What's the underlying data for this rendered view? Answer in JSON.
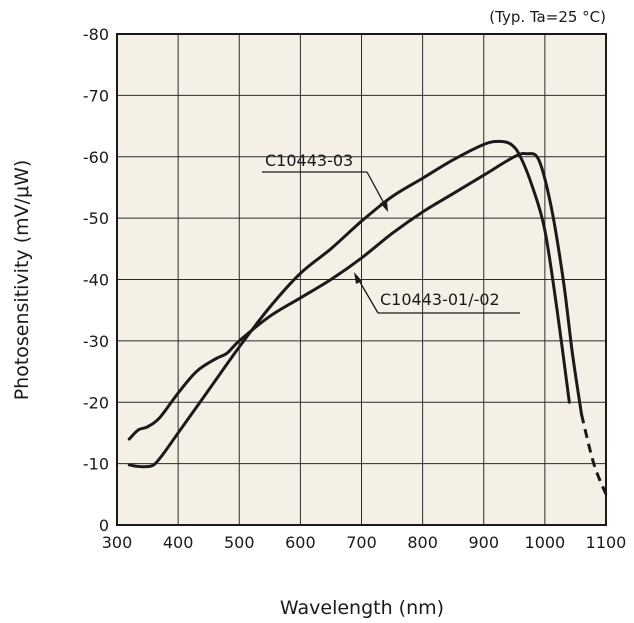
{
  "chart_data": {
    "type": "line",
    "condition_note": "(Typ. Ta=25 °C)",
    "xlabel": "Wavelength (nm)",
    "ylabel": "Photosensitivity (mV/μW)",
    "xlim": [
      300,
      1100
    ],
    "ylim": [
      0,
      -80
    ],
    "y_axis_inverted": true,
    "x_ticks": [
      "300",
      "400",
      "500",
      "600",
      "700",
      "800",
      "900",
      "1000",
      "1100"
    ],
    "y_ticks": [
      "0",
      "-10",
      "-20",
      "-30",
      "-40",
      "-50",
      "-60",
      "-70",
      "-80"
    ],
    "grid": true,
    "colors": {
      "plot_background": "#f4f0e6",
      "line": "#1a1a1a",
      "grid": "#2a2a2a"
    },
    "series": [
      {
        "name": "C10443-03",
        "x": [
          320,
          330,
          345,
          360,
          375,
          400,
          450,
          500,
          550,
          600,
          650,
          700,
          750,
          800,
          850,
          900,
          925,
          945,
          960,
          980,
          1000,
          1020,
          1040
        ],
        "y": [
          -9.8,
          -9.6,
          -9.5,
          -9.8,
          -11.5,
          -15,
          -22,
          -29,
          -35.5,
          -41,
          -45,
          -49.5,
          -53.5,
          -56.5,
          -59.5,
          -62,
          -62.5,
          -62,
          -60,
          -55,
          -48,
          -35,
          -20
        ],
        "dashed_from_x": null
      },
      {
        "name": "C10443-01/-02",
        "x": [
          320,
          335,
          350,
          370,
          400,
          430,
          460,
          480,
          500,
          550,
          600,
          650,
          700,
          750,
          800,
          850,
          900,
          950,
          970,
          990,
          1010,
          1030,
          1045,
          1060,
          1080,
          1100
        ],
        "y": [
          -14,
          -15.5,
          -16,
          -17.5,
          -21.5,
          -25,
          -27,
          -28,
          -30,
          -34,
          -37,
          -40,
          -43.5,
          -47.5,
          -51,
          -54,
          -57,
          -60,
          -60.5,
          -59.5,
          -52,
          -40,
          -28,
          -18,
          -10,
          -5
        ],
        "dashed_from_x": 1060
      }
    ],
    "annotations": [
      "C10443-03",
      "C10443-01/-02"
    ]
  }
}
